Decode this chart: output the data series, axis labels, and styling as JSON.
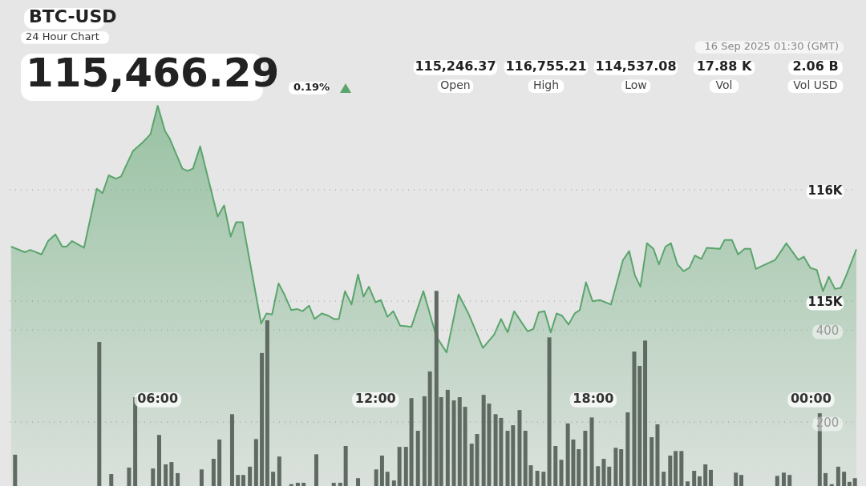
{
  "chart_data": {
    "type": "area",
    "title": "BTC-USD",
    "subtitle": "24 Hour Chart",
    "annotations": [
      "115,466.29",
      "0.19%",
      "115,246.37",
      "Open",
      "116,755.21",
      "High",
      "114,537.08",
      "Low",
      "17.88 K",
      "Vol",
      "2.06 B",
      "Vol USD",
      "16 Sep 2025 01:30 (GMT)"
    ],
    "xlim": [
      1.92,
      25.25
    ],
    "xticks": [
      {
        "value": 6,
        "label": "06:00"
      },
      {
        "value": 12,
        "label": "12:00"
      },
      {
        "value": 18,
        "label": "18:00"
      },
      {
        "value": 24,
        "label": "00:00"
      }
    ],
    "ylim": [
      113340,
      117705
    ],
    "yticks": [
      {
        "value": 115000,
        "label": "115K"
      },
      {
        "value": 116000,
        "label": "116K"
      }
    ],
    "y2lim": [
      61,
      1117
    ],
    "y2ticks": [
      200,
      400
    ],
    "grid": true,
    "series": [
      {
        "color": "#5aa56c",
        "x": [
          1.96,
          2.34,
          2.49,
          2.8,
          2.98,
          3.18,
          3.37,
          3.49,
          3.64,
          3.97,
          4.32,
          4.48,
          4.65,
          4.85,
          4.99,
          5.32,
          5.6,
          5.8,
          6.0,
          6.2,
          6.33,
          6.68,
          6.82,
          6.97,
          7.17,
          7.43,
          7.65,
          7.83,
          8.01,
          8.16,
          8.34,
          8.85,
          9.0,
          9.15,
          9.33,
          9.49,
          9.68,
          9.84,
          9.99,
          10.17,
          10.32,
          10.52,
          10.7,
          10.85,
          10.99,
          11.16,
          11.34,
          11.52,
          11.67,
          11.82,
          12.0,
          12.15,
          12.33,
          12.49,
          12.68,
          12.99,
          13.32,
          13.68,
          13.96,
          14.29,
          14.56,
          14.96,
          15.27,
          15.46,
          15.64,
          15.82,
          16.19,
          16.35,
          16.5,
          16.66,
          16.83,
          16.99,
          17.14,
          17.32,
          17.49,
          17.63,
          17.8,
          17.98,
          18.18,
          18.49,
          18.82,
          18.99,
          19.15,
          19.3,
          19.48,
          19.66,
          19.81,
          19.99,
          20.14,
          20.32,
          20.49,
          20.65,
          20.8,
          20.98,
          21.13,
          21.49,
          21.62,
          21.82,
          21.99,
          22.17,
          22.33,
          22.48,
          23.01,
          23.32,
          23.65,
          23.8,
          23.98,
          24.16,
          24.33,
          24.49,
          24.66,
          24.82,
          24.97,
          25.25
        ],
        "values": [
          115490,
          115440,
          115460,
          115420,
          115540,
          115600,
          115490,
          115490,
          115540,
          115480,
          116010,
          115970,
          116130,
          116100,
          116120,
          116350,
          116430,
          116500,
          116755,
          116530,
          116460,
          116190,
          116170,
          116190,
          116390,
          116050,
          115760,
          115860,
          115580,
          115710,
          115710,
          114800,
          114890,
          114880,
          115160,
          115060,
          114920,
          114930,
          114910,
          114960,
          114840,
          114890,
          114870,
          114840,
          114840,
          115090,
          114970,
          115240,
          115040,
          115130,
          114990,
          115010,
          114860,
          114910,
          114780,
          114770,
          115090,
          114680,
          114540,
          115060,
          114890,
          114580,
          114700,
          114840,
          114720,
          114910,
          114730,
          114750,
          114900,
          114910,
          114720,
          114890,
          114870,
          114790,
          114890,
          114920,
          115170,
          115000,
          115010,
          114970,
          115370,
          115450,
          115230,
          115130,
          115520,
          115470,
          115330,
          115490,
          115520,
          115330,
          115270,
          115300,
          115410,
          115380,
          115480,
          115470,
          115550,
          115550,
          115420,
          115470,
          115470,
          115290,
          115370,
          115520,
          115370,
          115400,
          115300,
          115280,
          115090,
          115220,
          115110,
          115120,
          115230,
          115466
        ]
      },
      {
        "type": "bar",
        "axis": "y2",
        "color": "#5f6b62",
        "x": [
          2.07,
          4.39,
          4.72,
          5.21,
          5.38,
          5.87,
          6.04,
          6.22,
          6.38,
          6.55,
          7.21,
          7.54,
          7.7,
          8.05,
          8.21,
          8.36,
          8.54,
          8.71,
          8.87,
          9.02,
          9.18,
          9.35,
          9.68,
          9.86,
          10.02,
          10.37,
          10.85,
          11.03,
          11.18,
          11.52,
          12.02,
          12.18,
          12.33,
          12.51,
          12.66,
          12.84,
          12.99,
          13.17,
          13.35,
          13.5,
          13.68,
          13.81,
          13.99,
          14.16,
          14.32,
          14.47,
          14.65,
          14.8,
          14.98,
          15.13,
          15.31,
          15.46,
          15.64,
          15.79,
          15.97,
          16.13,
          16.28,
          16.46,
          16.63,
          16.79,
          16.96,
          17.12,
          17.3,
          17.45,
          17.6,
          17.78,
          17.96,
          18.13,
          18.29,
          18.44,
          18.62,
          18.77,
          18.95,
          19.13,
          19.28,
          19.43,
          19.61,
          19.77,
          19.94,
          20.12,
          20.27,
          20.43,
          20.6,
          20.78,
          20.93,
          21.09,
          21.24,
          21.93,
          22.08,
          23.07,
          23.25,
          23.41,
          24.24,
          24.4,
          24.57,
          24.75,
          24.91,
          25.06,
          25.21
        ],
        "values": [
          129,
          374,
          87,
          101,
          254,
          99,
          172,
          108,
          113,
          89,
          97,
          120,
          162,
          217,
          85,
          85,
          103,
          163,
          350,
          421,
          92,
          125,
          65,
          68,
          68,
          130,
          68,
          68,
          148,
          78,
          97,
          127,
          92,
          73,
          146,
          146,
          252,
          181,
          256,
          310,
          485,
          254,
          270,
          247,
          254,
          233,
          153,
          174,
          259,
          240,
          217,
          209,
          181,
          193,
          226,
          181,
          106,
          94,
          92,
          384,
          148,
          118,
          197,
          162,
          141,
          181,
          210,
          104,
          120,
          103,
          144,
          141,
          221,
          353,
          322,
          377,
          167,
          195,
          92,
          127,
          137,
          137,
          71,
          94,
          82,
          108,
          96,
          90,
          85,
          83,
          90,
          85,
          219,
          89,
          65,
          103,
          92,
          70,
          78
        ]
      }
    ]
  }
}
